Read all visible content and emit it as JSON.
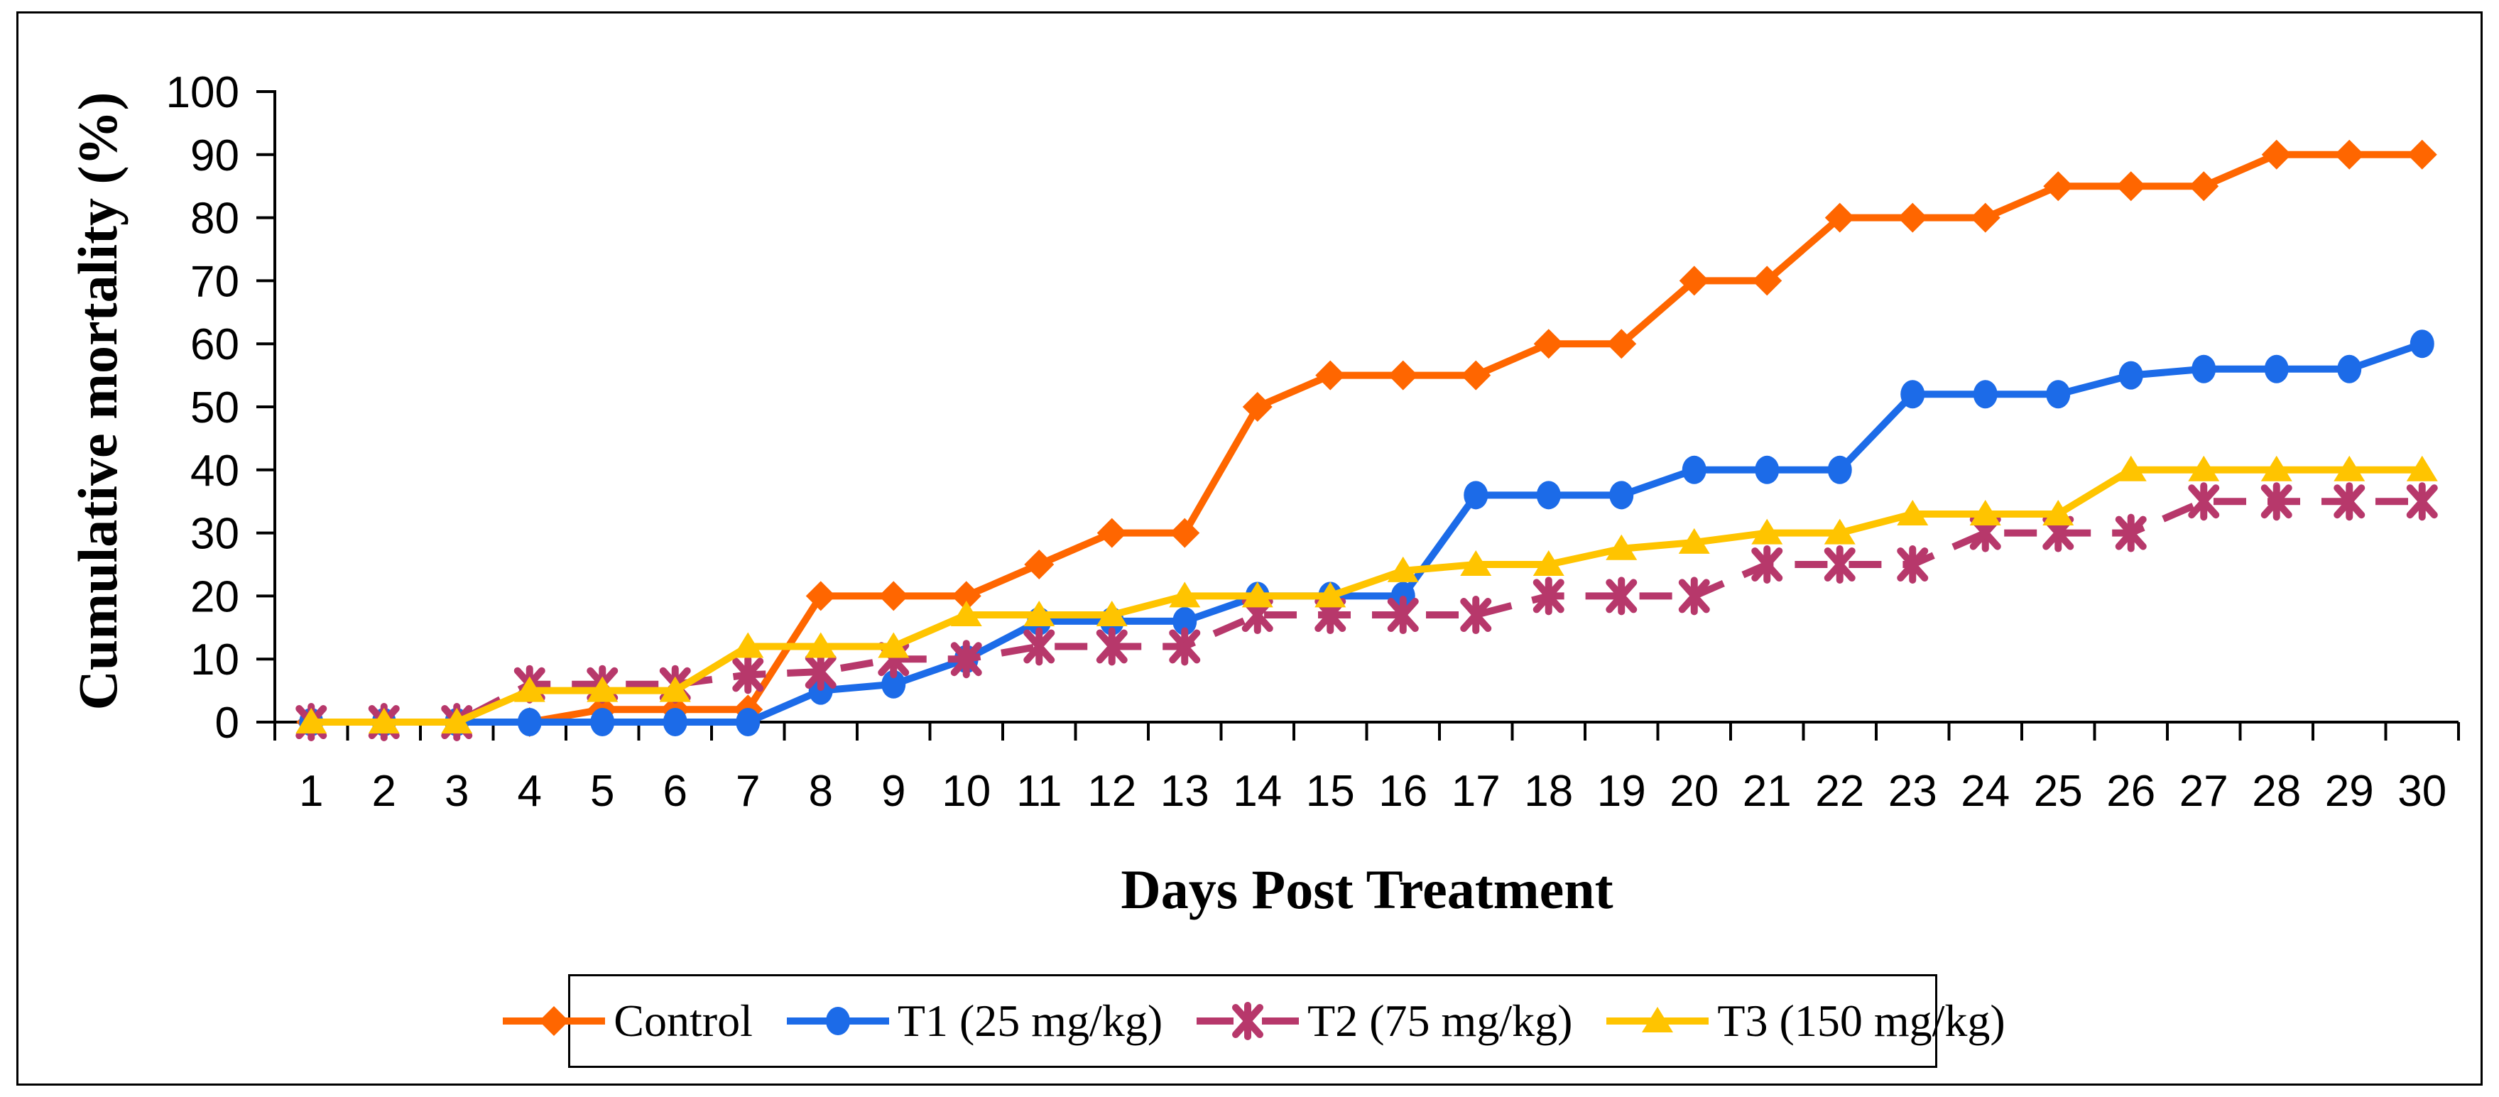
{
  "figure": {
    "background": "#FFFFFF",
    "border_color": "#000000"
  },
  "chart_data": {
    "type": "line",
    "title": "",
    "xlabel": "Days Post Treatment",
    "ylabel": "Cumulative mortality (%)",
    "x": [
      1,
      2,
      3,
      4,
      5,
      6,
      7,
      8,
      9,
      10,
      11,
      12,
      13,
      14,
      15,
      16,
      17,
      18,
      19,
      20,
      21,
      22,
      23,
      24,
      25,
      26,
      27,
      28,
      29,
      30
    ],
    "ylim": [
      0,
      100
    ],
    "yticks": [
      0,
      10,
      20,
      30,
      40,
      50,
      60,
      70,
      80,
      90,
      100
    ],
    "grid": false,
    "legend_position": "bottom",
    "axis_color": "#000000",
    "series": [
      {
        "name": "Control",
        "color": "#FF6600",
        "marker": "diamond",
        "line": "solid",
        "values": [
          0,
          0,
          0,
          0,
          2,
          2,
          2,
          20,
          20,
          20,
          25,
          30,
          30,
          50,
          55,
          55,
          55,
          60,
          60,
          70,
          70,
          80,
          80,
          80,
          85,
          85,
          85,
          90,
          90,
          90
        ]
      },
      {
        "name": "T1 (25 mg/kg)",
        "color": "#1C6BE8",
        "marker": "circle",
        "line": "solid",
        "values": [
          0,
          0,
          0,
          0,
          0,
          0,
          0,
          5,
          6,
          10,
          16,
          16,
          16,
          20,
          20,
          20,
          36,
          36,
          36,
          40,
          40,
          40,
          52,
          52,
          52,
          55,
          56,
          56,
          56,
          60
        ]
      },
      {
        "name": "T2 (75 mg/kg)",
        "color": "#B7386B",
        "marker": "star",
        "line": "dashed",
        "values": [
          0,
          0,
          0,
          6,
          6,
          6,
          7.5,
          8,
          10,
          10,
          12,
          12,
          12,
          17,
          17,
          17,
          17,
          20,
          20,
          20,
          25,
          25,
          25,
          30,
          30,
          30,
          35,
          35,
          35,
          35
        ]
      },
      {
        "name": "T3 (150 mg/kg)",
        "color": "#FFC400",
        "marker": "triangle",
        "line": "solid",
        "values": [
          0,
          0,
          0,
          5,
          5,
          5,
          12,
          12,
          12,
          17,
          17,
          17,
          20,
          20,
          20,
          24,
          25,
          25,
          27.5,
          28.5,
          30,
          30,
          33,
          33,
          33,
          40,
          40,
          40,
          40,
          40
        ]
      }
    ]
  }
}
